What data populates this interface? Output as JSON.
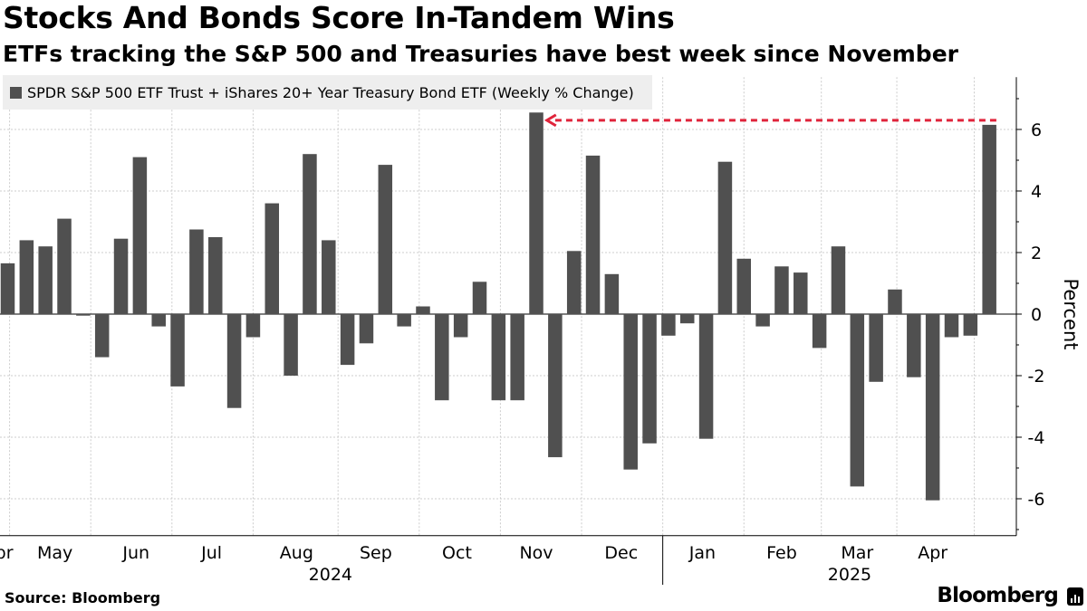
{
  "title": "Stocks And Bonds Score In-Tandem Wins",
  "subtitle": "ETFs tracking the S&P 500 and Treasuries have best week since November",
  "source": "Source: Bloomberg",
  "brand": "Bloomberg",
  "colors": {
    "bar": "#505050",
    "arrow": "#e0243b",
    "grid": "#cccccc",
    "legend_bg": "#eeeeee"
  },
  "chart_data": {
    "type": "bar",
    "legend": "SPDR S&P 500 ETF Trust + iShares 20+ Year Treasury Bond ETF (Weekly % Change)",
    "ylabel": "Percent",
    "xlabel": "",
    "ylim": [
      -7.2,
      7.7
    ],
    "yticks": [
      -6,
      -4,
      -2,
      0,
      2,
      4,
      6
    ],
    "ytick_labels": [
      "-6",
      "-4",
      "-2",
      "0",
      "2",
      "4",
      "6"
    ],
    "values": [
      1.65,
      2.4,
      2.2,
      3.1,
      -0.05,
      -1.4,
      2.45,
      5.1,
      -0.4,
      -2.35,
      2.75,
      2.5,
      -3.05,
      -0.75,
      3.6,
      -2.0,
      5.2,
      2.4,
      -1.65,
      -0.95,
      4.85,
      -0.4,
      0.25,
      -2.8,
      -0.75,
      1.05,
      -2.8,
      -2.8,
      6.55,
      -4.65,
      2.05,
      5.15,
      1.3,
      -5.05,
      -4.2,
      -0.7,
      -0.3,
      -4.05,
      4.95,
      1.8,
      -0.4,
      1.55,
      1.35,
      -1.1,
      2.2,
      -5.6,
      -2.2,
      0.8,
      -2.05,
      -6.05,
      -0.75,
      -0.7,
      6.15
    ],
    "month_labels": [
      {
        "label": "Apr",
        "week": -0.5
      },
      {
        "label": "May",
        "week": 2.5
      },
      {
        "label": "Jun",
        "week": 6.8
      },
      {
        "label": "Jul",
        "week": 10.8
      },
      {
        "label": "Aug",
        "week": 15.3
      },
      {
        "label": "Sep",
        "week": 19.5
      },
      {
        "label": "Oct",
        "week": 23.8
      },
      {
        "label": "Nov",
        "week": 28.0
      },
      {
        "label": "Dec",
        "week": 32.5
      },
      {
        "label": "Jan",
        "week": 36.8
      },
      {
        "label": "Feb",
        "week": 41.0
      },
      {
        "label": "Mar",
        "week": 45.0
      },
      {
        "label": "Apr",
        "week": 49.0
      }
    ],
    "gridline_weeks": [
      0.1,
      4.4,
      8.7,
      13.0,
      17.5,
      21.8,
      26.1,
      30.4,
      34.7,
      39.0,
      43.1,
      47.1,
      51.2
    ],
    "year_labels": [
      {
        "label": "2024",
        "week": 17.1
      },
      {
        "label": "2025",
        "week": 44.6
      }
    ],
    "year_divider_week": 34.7,
    "annotation": {
      "type": "dashed-arrow",
      "from_week": 52,
      "to_week": 28,
      "value": 6.15
    }
  }
}
